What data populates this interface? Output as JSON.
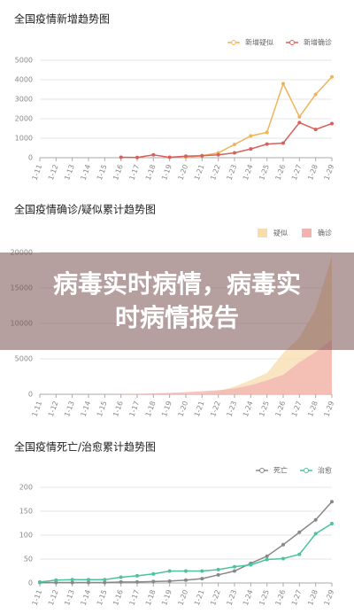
{
  "chart_data": [
    {
      "type": "line",
      "title": "全国疫情新增趋势图",
      "legend": "top-right",
      "grid": true,
      "categories": [
        "1-11",
        "1-12",
        "1-13",
        "1-14",
        "1-15",
        "1-16",
        "1-17",
        "1-18",
        "1-19",
        "1-20",
        "1-21",
        "1-22",
        "1-23",
        "1-24",
        "1-25",
        "1-26",
        "1-27",
        "1-28",
        "1-29"
      ],
      "ylim": [
        0,
        5000
      ],
      "yticks": [
        0,
        1000,
        2000,
        3000,
        4000,
        5000
      ],
      "series": [
        {
          "name": "新增疑似",
          "color": "#f0b45a",
          "values": [
            null,
            null,
            null,
            null,
            null,
            null,
            null,
            null,
            null,
            30,
            100,
            250,
            680,
            1120,
            1300,
            3800,
            2100,
            3250,
            4150
          ]
        },
        {
          "name": "新增确诊",
          "color": "#d9605a",
          "values": [
            null,
            null,
            null,
            null,
            null,
            20,
            10,
            150,
            20,
            80,
            100,
            150,
            250,
            450,
            700,
            750,
            1800,
            1450,
            1750
          ]
        }
      ]
    },
    {
      "type": "area",
      "title": "全国疫情确诊/疑似累计趋势图",
      "legend": "top-right",
      "grid": true,
      "categories": [
        "1-11",
        "1-12",
        "1-13",
        "1-14",
        "1-15",
        "1-16",
        "1-17",
        "1-18",
        "1-19",
        "1-20",
        "1-21",
        "1-22",
        "1-23",
        "1-24",
        "1-25",
        "1-26",
        "1-27",
        "1-28",
        "1-29"
      ],
      "ylim": [
        0,
        20000
      ],
      "yticks": [
        0,
        5000,
        10000,
        15000,
        20000
      ],
      "series": [
        {
          "name": "疑似",
          "color": "#f7dcae",
          "values": [
            0,
            0,
            0,
            0,
            0,
            0,
            0,
            0,
            0,
            50,
            100,
            400,
            1100,
            2000,
            3000,
            5800,
            8000,
            12000,
            19500
          ]
        },
        {
          "name": "确诊",
          "color": "#f2b3b0",
          "values": [
            0,
            0,
            0,
            0,
            0,
            45,
            62,
            121,
            198,
            291,
            440,
            571,
            830,
            1287,
            1975,
            2744,
            4515,
            5974,
            7711
          ]
        }
      ]
    },
    {
      "type": "line",
      "title": "全国疫情死亡/治愈累计趋势图",
      "legend": "top-right",
      "grid": true,
      "categories": [
        "1-11",
        "1-12",
        "1-13",
        "1-14",
        "1-15",
        "1-16",
        "1-17",
        "1-18",
        "1-19",
        "1-20",
        "1-21",
        "1-22",
        "1-23",
        "1-24",
        "1-25",
        "1-26",
        "1-27",
        "1-28",
        "1-29"
      ],
      "ylim": [
        0,
        200
      ],
      "yticks": [
        0,
        50,
        100,
        150,
        200
      ],
      "series": [
        {
          "name": "死亡",
          "color": "#888888",
          "values": [
            1,
            1,
            1,
            1,
            1,
            2,
            2,
            3,
            4,
            6,
            9,
            17,
            25,
            41,
            56,
            80,
            106,
            132,
            170
          ]
        },
        {
          "name": "治愈",
          "color": "#4cc3a0",
          "values": [
            2,
            6,
            7,
            7,
            7,
            12,
            15,
            19,
            25,
            25,
            25,
            28,
            34,
            38,
            49,
            51,
            60,
            103,
            124
          ]
        }
      ]
    }
  ],
  "banner": "病毒实时病情，病毒实时病情报告"
}
